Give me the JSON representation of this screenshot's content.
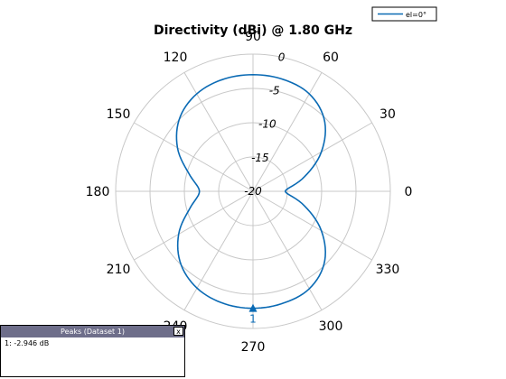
{
  "chart_data": {
    "type": "polar-line",
    "title": "Directivity (dBi) @ 1.80 GHz",
    "angle_ticks": [
      "0",
      "30",
      "60",
      "90",
      "120",
      "150",
      "180",
      "210",
      "240",
      "270",
      "300",
      "330"
    ],
    "radial_ticks": [
      0,
      -5,
      -10,
      -15,
      -20
    ],
    "radial_range": [
      -20,
      0
    ],
    "grid": true,
    "legend": {
      "position": "top-right",
      "label": "el=0°"
    },
    "colors": {
      "series": "#0a6ab4",
      "grid": "#c8c8c8"
    },
    "series": [
      {
        "name": "el=0°",
        "angles_deg": [
          0,
          15,
          30,
          45,
          60,
          75,
          90,
          105,
          120,
          135,
          150,
          165,
          180,
          195,
          210,
          225,
          240,
          255,
          270,
          285,
          300,
          315,
          330,
          345
        ],
        "values_db": [
          -15.3,
          -12.4,
          -8.5,
          -5.3,
          -3.6,
          -3.1,
          -3.0,
          -3.1,
          -3.6,
          -4.9,
          -7.3,
          -10.4,
          -12.2,
          -10.5,
          -7.5,
          -5.1,
          -3.7,
          -3.1,
          -2.946,
          -3.1,
          -3.6,
          -5.3,
          -8.5,
          -12.4
        ]
      }
    ],
    "marker": {
      "label": "1",
      "angle_deg": 270,
      "value_db": -2.946
    }
  },
  "peaks": {
    "title": "Peaks (Dataset 1)",
    "close_label": "x",
    "rows": [
      "1: -2.946 dB"
    ]
  }
}
